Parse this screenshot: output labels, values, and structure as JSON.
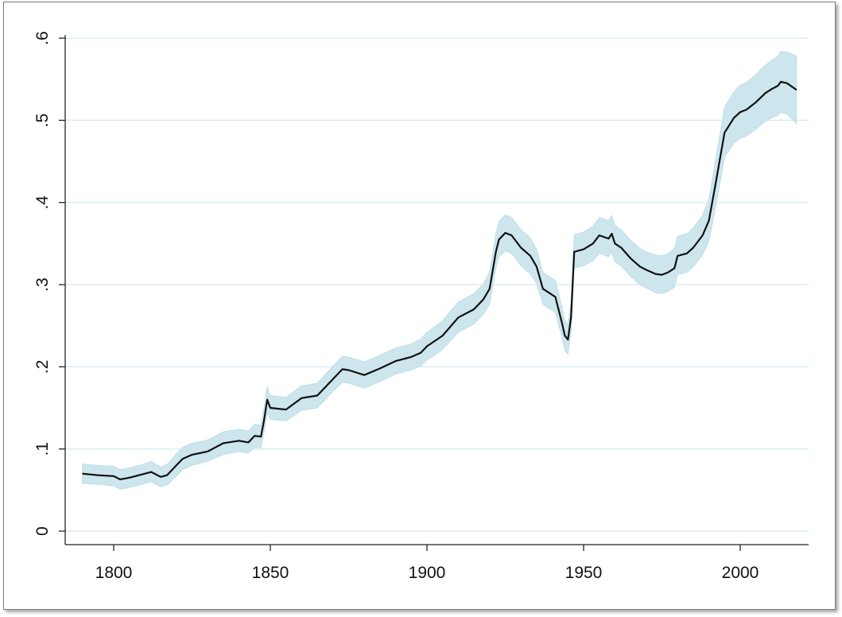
{
  "chart_data": {
    "type": "line",
    "title": "",
    "xlabel": "",
    "ylabel": "",
    "xlim": [
      1788,
      2022
    ],
    "ylim": [
      0,
      0.6
    ],
    "xticks": [
      1800,
      1850,
      1900,
      1950,
      2000
    ],
    "xtick_labels": [
      "1800",
      "1850",
      "1900",
      "1950",
      "2000"
    ],
    "yticks": [
      0,
      0.1,
      0.2,
      0.3,
      0.4,
      0.5,
      0.6
    ],
    "ytick_labels": [
      "0",
      ".1",
      ".2",
      ".3",
      ".4",
      ".5",
      ".6"
    ],
    "grid": true,
    "legend": "none",
    "colors": {
      "line": "#111111",
      "band": "#cde6ee",
      "grid": "#dceef2"
    },
    "series": [
      {
        "x": [
          1790,
          1795,
          1800,
          1802,
          1805,
          1810,
          1812,
          1815,
          1817,
          1820,
          1822,
          1825,
          1830,
          1835,
          1840,
          1843,
          1845,
          1847,
          1848,
          1849,
          1850,
          1855,
          1860,
          1865,
          1870,
          1873,
          1875,
          1880,
          1885,
          1890,
          1893,
          1895,
          1898,
          1900,
          1905,
          1910,
          1915,
          1918,
          1920,
          1922,
          1923,
          1925,
          1927,
          1930,
          1933,
          1935,
          1937,
          1939,
          1941,
          1943,
          1944,
          1945,
          1946,
          1947,
          1950,
          1953,
          1955,
          1958,
          1959,
          1960,
          1962,
          1965,
          1968,
          1970,
          1973,
          1975,
          1977,
          1979,
          1980,
          1983,
          1985,
          1988,
          1990,
          1992,
          1995,
          1998,
          2000,
          2002,
          2005,
          2008,
          2010,
          2012,
          2013,
          2015,
          2018
        ],
        "y": [
          0.07,
          0.068,
          0.067,
          0.063,
          0.065,
          0.07,
          0.072,
          0.066,
          0.068,
          0.08,
          0.088,
          0.093,
          0.097,
          0.107,
          0.11,
          0.108,
          0.116,
          0.115,
          0.135,
          0.16,
          0.15,
          0.148,
          0.162,
          0.165,
          0.185,
          0.197,
          0.196,
          0.19,
          0.198,
          0.207,
          0.21,
          0.212,
          0.217,
          0.225,
          0.238,
          0.26,
          0.27,
          0.282,
          0.295,
          0.34,
          0.355,
          0.363,
          0.36,
          0.345,
          0.335,
          0.322,
          0.295,
          0.29,
          0.285,
          0.255,
          0.238,
          0.233,
          0.26,
          0.34,
          0.343,
          0.35,
          0.36,
          0.356,
          0.362,
          0.35,
          0.345,
          0.332,
          0.322,
          0.318,
          0.313,
          0.312,
          0.315,
          0.32,
          0.335,
          0.338,
          0.345,
          0.36,
          0.378,
          0.42,
          0.485,
          0.503,
          0.51,
          0.513,
          0.522,
          0.533,
          0.538,
          0.542,
          0.547,
          0.545,
          0.537
        ],
        "ci_lower": [
          0.058,
          0.057,
          0.055,
          0.051,
          0.053,
          0.058,
          0.06,
          0.054,
          0.056,
          0.067,
          0.075,
          0.08,
          0.085,
          0.093,
          0.097,
          0.095,
          0.102,
          0.101,
          0.12,
          0.145,
          0.136,
          0.134,
          0.147,
          0.15,
          0.17,
          0.181,
          0.18,
          0.174,
          0.182,
          0.191,
          0.194,
          0.196,
          0.201,
          0.208,
          0.221,
          0.242,
          0.252,
          0.264,
          0.276,
          0.32,
          0.334,
          0.341,
          0.338,
          0.323,
          0.313,
          0.301,
          0.276,
          0.271,
          0.266,
          0.237,
          0.22,
          0.215,
          0.242,
          0.32,
          0.323,
          0.329,
          0.338,
          0.334,
          0.34,
          0.328,
          0.323,
          0.31,
          0.3,
          0.296,
          0.29,
          0.289,
          0.292,
          0.297,
          0.312,
          0.315,
          0.322,
          0.336,
          0.353,
          0.392,
          0.455,
          0.472,
          0.478,
          0.481,
          0.489,
          0.499,
          0.503,
          0.506,
          0.51,
          0.507,
          0.496
        ],
        "ci_upper": [
          0.082,
          0.08,
          0.079,
          0.075,
          0.077,
          0.082,
          0.085,
          0.078,
          0.081,
          0.094,
          0.102,
          0.107,
          0.111,
          0.121,
          0.124,
          0.122,
          0.13,
          0.129,
          0.15,
          0.176,
          0.165,
          0.163,
          0.177,
          0.18,
          0.201,
          0.213,
          0.212,
          0.206,
          0.214,
          0.223,
          0.226,
          0.228,
          0.234,
          0.242,
          0.256,
          0.279,
          0.289,
          0.301,
          0.315,
          0.362,
          0.377,
          0.385,
          0.382,
          0.367,
          0.357,
          0.343,
          0.315,
          0.31,
          0.305,
          0.274,
          0.256,
          0.251,
          0.279,
          0.361,
          0.364,
          0.371,
          0.382,
          0.378,
          0.384,
          0.372,
          0.367,
          0.354,
          0.344,
          0.34,
          0.336,
          0.335,
          0.338,
          0.344,
          0.359,
          0.362,
          0.369,
          0.385,
          0.404,
          0.449,
          0.516,
          0.535,
          0.543,
          0.546,
          0.556,
          0.567,
          0.573,
          0.578,
          0.584,
          0.583,
          0.578
        ]
      }
    ]
  }
}
